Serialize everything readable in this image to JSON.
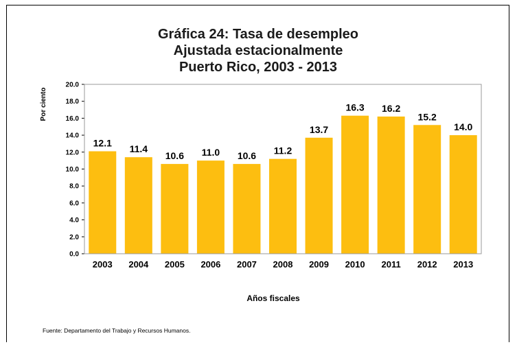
{
  "chart_data": {
    "type": "bar",
    "title_lines": [
      "Gráfica 24: Tasa de desempleo",
      "Ajustada estacionalmente",
      "Puerto Rico, 2003 - 2013"
    ],
    "xlabel": "Años fiscales",
    "ylabel": "Por ciento",
    "categories": [
      "2003",
      "2004",
      "2005",
      "2006",
      "2007",
      "2008",
      "2009",
      "2010",
      "2011",
      "2012",
      "2013"
    ],
    "values": [
      12.1,
      11.4,
      10.6,
      11.0,
      10.6,
      11.2,
      13.7,
      16.3,
      16.2,
      15.2,
      14.0
    ],
    "value_labels": [
      "12.1",
      "11.4",
      "10.6",
      "11.0",
      "10.6",
      "11.2",
      "13.7",
      "16.3",
      "16.2",
      "15.2",
      "14.0"
    ],
    "ylim": [
      0,
      20
    ],
    "yticks": [
      0,
      2,
      4,
      6,
      8,
      10,
      12,
      14,
      16,
      18,
      20
    ],
    "ytick_labels": [
      "0.0",
      "2.0",
      "4.0",
      "6.0",
      "8.0",
      "10.0",
      "12.0",
      "14.0",
      "16.0",
      "18.0",
      "20.0"
    ],
    "grid": false,
    "legend": "none",
    "bar_color": "#FDBE10",
    "source": "Fuente: Departamento del Trabajo y Recursos Humanos."
  }
}
